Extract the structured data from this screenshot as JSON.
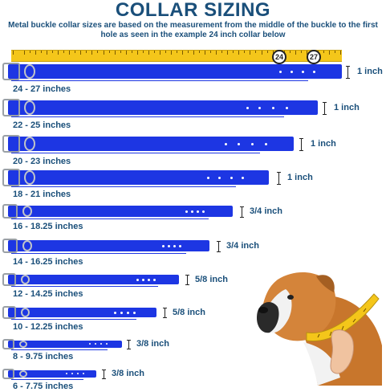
{
  "title": "COLLAR SIZING",
  "subtitle": "Metal buckle collar sizes are based on the measurement from the middle of the buckle to the first hole as seen in the example 24 inch collar below",
  "ruler": {
    "mark_24": "24",
    "mark_27": "27"
  },
  "collars": [
    {
      "range": "24 - 27 inches",
      "width": "1 inch"
    },
    {
      "range": "22 - 25 inches",
      "width": "1 inch"
    },
    {
      "range": "20 - 23 inches",
      "width": "1 inch"
    },
    {
      "range": "18 - 21 inches",
      "width": "1 inch"
    },
    {
      "range": "16 - 18.25 inches",
      "width": "3/4 inch"
    },
    {
      "range": "14 - 16.25 inches",
      "width": "3/4 inch"
    },
    {
      "range": "12 - 14.25 inches",
      "width": "5/8 inch"
    },
    {
      "range": "10 - 12.25 inches",
      "width": "5/8 inch"
    },
    {
      "range": "8 - 9.75 inches",
      "width": "3/8 inch"
    },
    {
      "range": "6 - 7.75 inches",
      "width": "3/8 inch"
    }
  ],
  "colors": {
    "strap": "#1d36e3",
    "title": "#1a4f7a",
    "ruler": "#f4c61a"
  }
}
